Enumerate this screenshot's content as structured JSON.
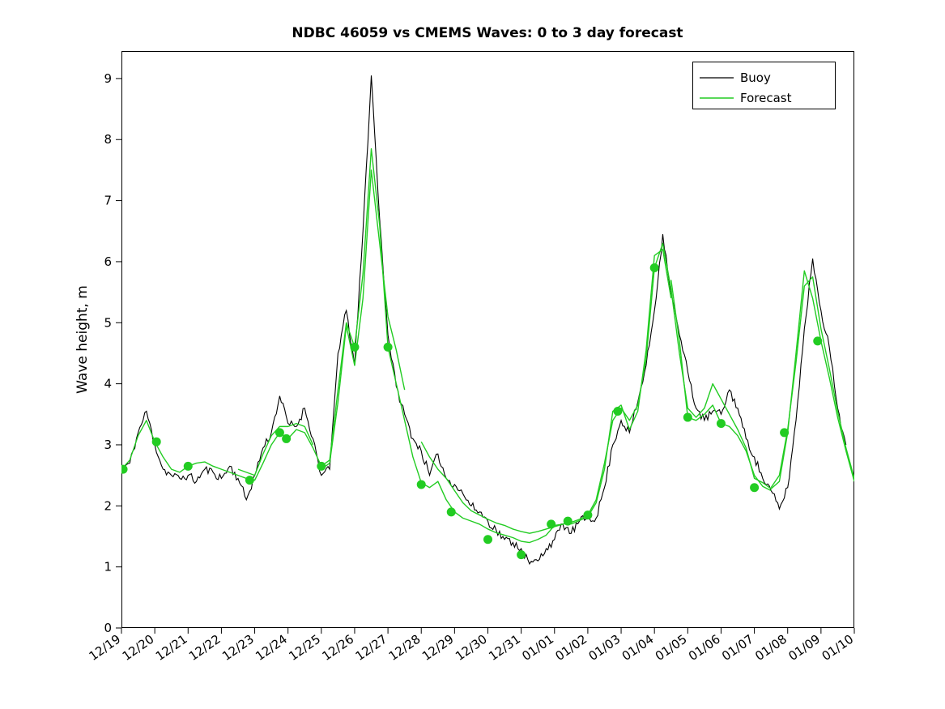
{
  "chart_data": {
    "type": "line",
    "title": "NDBC 46059 vs CMEMS Waves: 0 to 3 day forecast",
    "xlabel": "",
    "ylabel": "Wave height, m",
    "grid": false,
    "legend_position": "top-right-inside",
    "xlim": [
      0,
      22
    ],
    "ylim": [
      0,
      9.45
    ],
    "yticks": [
      0,
      1,
      2,
      3,
      4,
      5,
      6,
      7,
      8,
      9
    ],
    "x_tick_positions": [
      0,
      1,
      2,
      3,
      4,
      5,
      6,
      7,
      8,
      9,
      10,
      11,
      12,
      13,
      14,
      15,
      16,
      17,
      18,
      19,
      20,
      21,
      22
    ],
    "x_tick_labels": [
      "12/19",
      "12/20",
      "12/21",
      "12/22",
      "12/23",
      "12/24",
      "12/25",
      "12/26",
      "12/27",
      "12/28",
      "12/29",
      "12/30",
      "12/31",
      "01/01",
      "01/02",
      "01/03",
      "01/04",
      "01/05",
      "01/06",
      "01/07",
      "01/08",
      "01/09",
      "01/10"
    ],
    "x_unit": "days since 12/19",
    "series": [
      {
        "name": "Buoy",
        "color": "#000000",
        "x_start": 0,
        "x_step": 0.25,
        "y": [
          2.6,
          2.7,
          3.2,
          3.55,
          3.0,
          2.6,
          2.5,
          2.45,
          2.5,
          2.4,
          2.6,
          2.55,
          2.45,
          2.65,
          2.45,
          2.1,
          2.5,
          2.95,
          3.2,
          3.8,
          3.35,
          3.3,
          3.6,
          3.1,
          2.5,
          2.6,
          4.5,
          5.2,
          4.3,
          6.5,
          9.05,
          6.7,
          4.8,
          3.95,
          3.5,
          3.1,
          2.9,
          2.5,
          2.85,
          2.45,
          2.35,
          2.2,
          2.0,
          1.9,
          1.75,
          1.6,
          1.45,
          1.4,
          1.3,
          1.05,
          1.1,
          1.3,
          1.45,
          1.7,
          1.55,
          1.75,
          1.8,
          1.8,
          2.3,
          3.0,
          3.4,
          3.2,
          3.7,
          4.3,
          5.2,
          6.45,
          5.5,
          4.8,
          4.2,
          3.6,
          3.4,
          3.55,
          3.5,
          3.9,
          3.6,
          3.1,
          2.8,
          2.45,
          2.25,
          1.95,
          2.3,
          3.4,
          4.9,
          6.05,
          5.2,
          4.6,
          3.6,
          3.0
        ],
        "noise": {
          "amplitude": 0.07,
          "seed": 11,
          "subdivisions": 5
        }
      },
      {
        "name": "Forecast",
        "color": "#22cc22",
        "segments": [
          {
            "x_start": 0,
            "x_step": 0.25,
            "y": [
              2.6,
              2.75,
              3.15,
              3.4,
              3.05,
              2.8,
              2.6,
              2.55,
              2.65,
              2.7,
              2.72,
              2.65,
              2.6,
              2.55,
              2.5,
              2.45,
              2.42,
              2.7,
              3.0,
              3.2,
              3.1,
              3.25,
              3.2,
              2.95,
              2.65,
              2.75,
              3.9,
              5.0,
              4.6,
              5.8,
              7.85,
              6.6,
              4.6,
              4.0,
              3.4,
              2.8,
              2.38,
              2.3,
              2.4,
              2.1,
              1.9,
              1.8,
              1.75,
              1.7,
              1.62,
              1.56,
              1.52,
              1.48,
              1.42,
              1.4,
              1.45,
              1.52,
              1.68,
              1.7,
              1.73,
              1.78,
              1.85,
              2.1,
              2.7,
              3.4,
              3.6,
              3.4,
              3.65,
              4.4,
              5.9,
              6.3,
              5.55,
              4.5,
              3.6,
              3.45,
              3.6,
              4.0,
              3.75,
              3.5,
              3.25,
              2.95,
              2.45,
              2.38,
              2.28,
              2.4,
              3.2,
              4.5,
              5.85,
              5.4,
              4.7,
              4.1,
              3.45,
              2.9,
              2.4
            ]
          },
          {
            "x": [
              3.5,
              3.75,
              4.0,
              4.25,
              4.5,
              4.75,
              5.0,
              5.25,
              5.5,
              5.75
            ],
            "y": [
              2.6,
              2.55,
              2.5,
              2.85,
              3.15,
              3.3,
              3.3,
              3.35,
              3.3,
              3.0
            ]
          },
          {
            "x": [
              6.0,
              6.25,
              6.5,
              6.75,
              7.0,
              7.25,
              7.5,
              7.75,
              8.0,
              8.25,
              8.5
            ],
            "y": [
              2.6,
              2.7,
              3.7,
              4.95,
              4.3,
              5.4,
              7.5,
              6.3,
              5.1,
              4.55,
              3.9
            ]
          },
          {
            "x": [
              9.0,
              9.25,
              9.5,
              9.75,
              10.0,
              10.25,
              10.5,
              10.75,
              11.0,
              11.25,
              11.5,
              11.75,
              12.0,
              12.25,
              12.5,
              12.75,
              13.0,
              13.25,
              13.5
            ],
            "y": [
              3.05,
              2.8,
              2.6,
              2.45,
              2.25,
              2.05,
              1.92,
              1.85,
              1.78,
              1.72,
              1.68,
              1.62,
              1.58,
              1.55,
              1.58,
              1.62,
              1.66,
              1.7,
              1.74
            ]
          },
          {
            "x": [
              13.5,
              13.75,
              14.0,
              14.25,
              14.5,
              14.75,
              15.0,
              15.25,
              15.5,
              15.75,
              16.0,
              16.25,
              16.5
            ],
            "y": [
              1.7,
              1.76,
              1.82,
              2.05,
              2.6,
              3.55,
              3.65,
              3.25,
              3.55,
              4.55,
              6.1,
              6.2,
              5.4
            ]
          },
          {
            "x": [
              16.5,
              16.75,
              17.0,
              17.25,
              17.5,
              17.75,
              18.0,
              18.25,
              18.5,
              18.75,
              19.0,
              19.25,
              19.5
            ],
            "y": [
              5.7,
              4.7,
              3.45,
              3.4,
              3.5,
              3.65,
              3.35,
              3.3,
              3.15,
              2.9,
              2.5,
              2.32,
              2.25
            ]
          },
          {
            "x": [
              19.5,
              19.75,
              20.0,
              20.25,
              20.5,
              20.75,
              21.0,
              21.25,
              21.5,
              21.75,
              22.0
            ],
            "y": [
              2.3,
              2.5,
              3.25,
              4.35,
              5.6,
              5.75,
              4.9,
              4.25,
              3.55,
              2.95,
              2.45
            ]
          }
        ]
      }
    ],
    "markers": {
      "name": "forecast-start-points",
      "color": "#22cc22",
      "points": [
        [
          0.05,
          2.6
        ],
        [
          1.05,
          3.05
        ],
        [
          2.0,
          2.65
        ],
        [
          3.85,
          2.42
        ],
        [
          4.75,
          3.2
        ],
        [
          4.95,
          3.1
        ],
        [
          6.0,
          2.65
        ],
        [
          7.0,
          4.6
        ],
        [
          8.0,
          4.6
        ],
        [
          9.0,
          2.35
        ],
        [
          9.9,
          1.9
        ],
        [
          11.0,
          1.45
        ],
        [
          12.0,
          1.2
        ],
        [
          12.9,
          1.7
        ],
        [
          13.4,
          1.75
        ],
        [
          14.0,
          1.85
        ],
        [
          14.9,
          3.55
        ],
        [
          16.0,
          5.9
        ],
        [
          17.0,
          3.45
        ],
        [
          18.0,
          3.35
        ],
        [
          19.0,
          2.3
        ],
        [
          19.9,
          3.2
        ],
        [
          20.9,
          4.7
        ]
      ]
    }
  }
}
